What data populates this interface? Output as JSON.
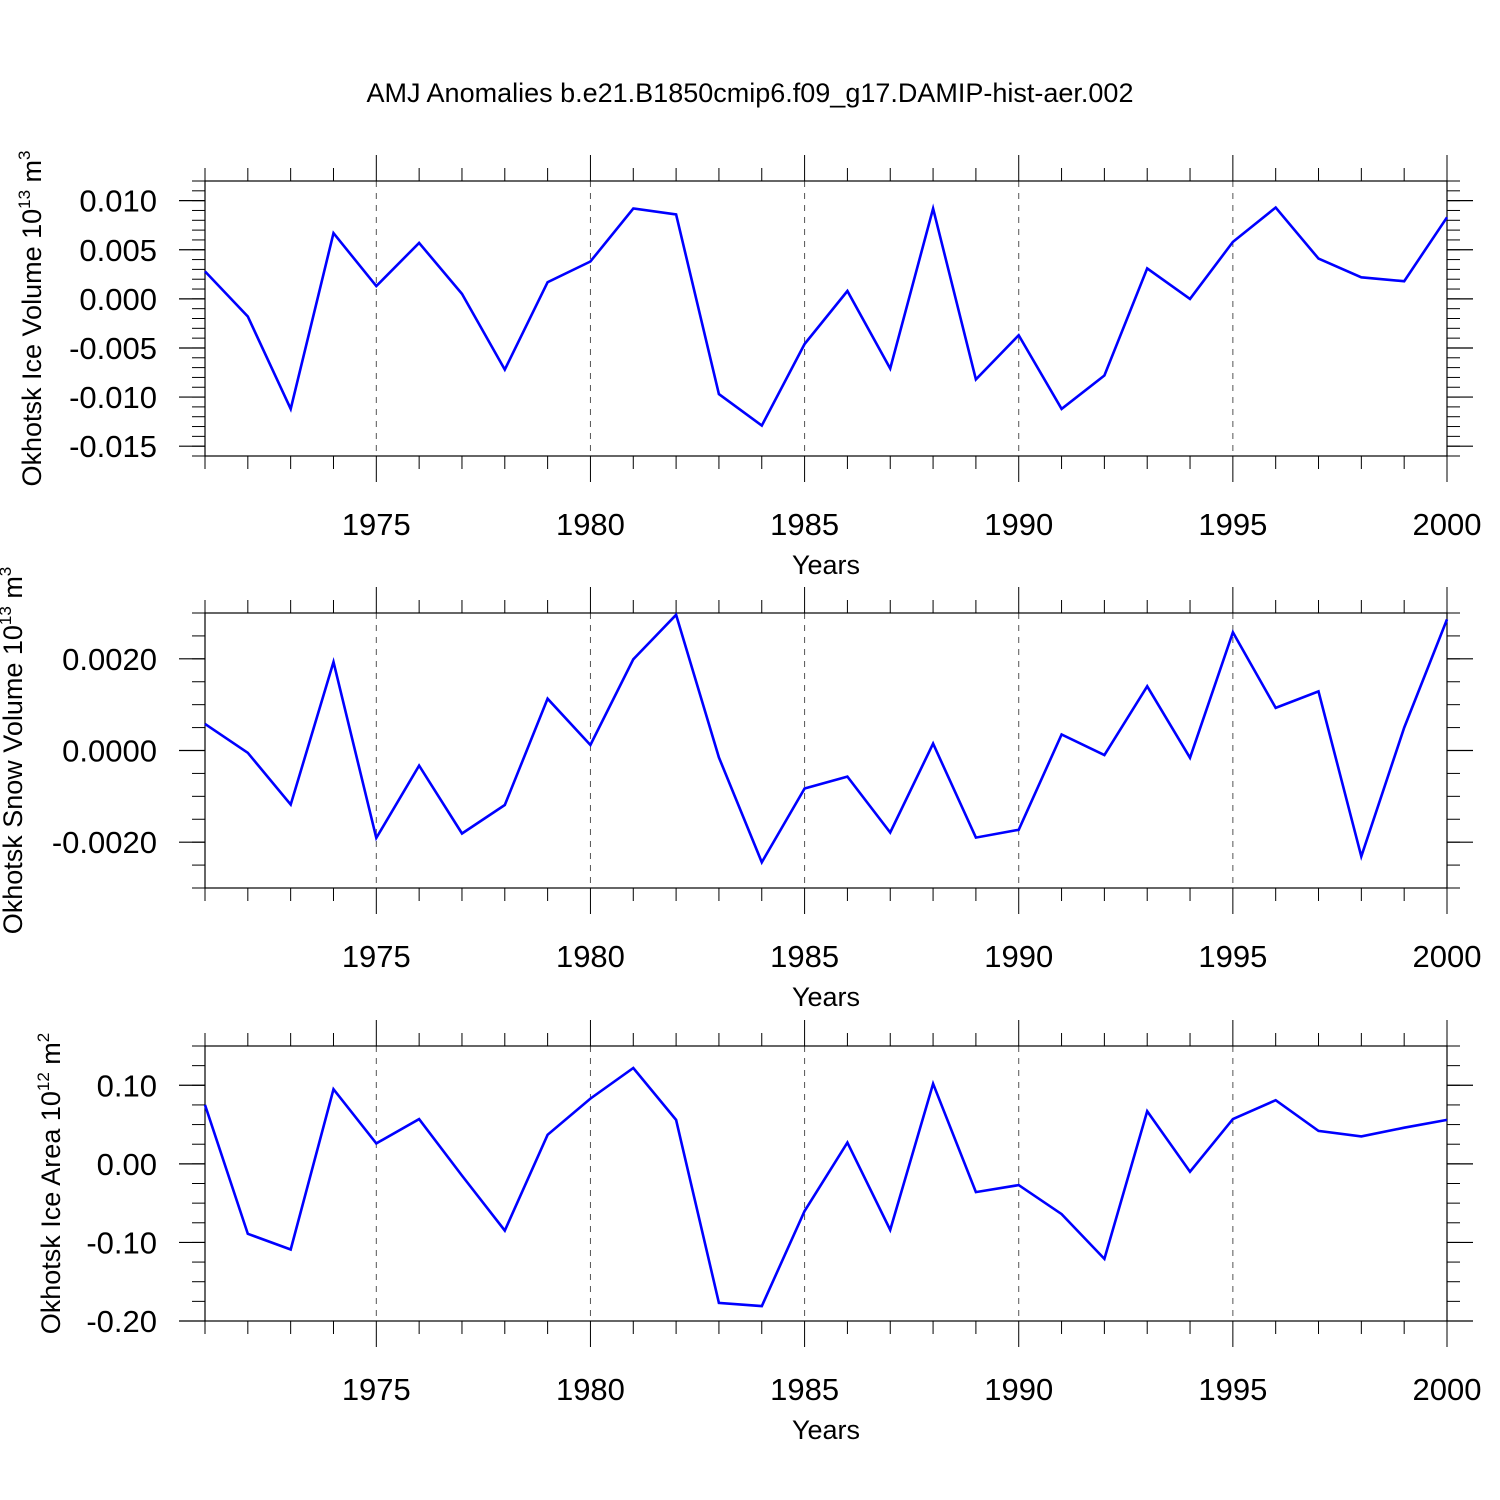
{
  "title": "AMJ Anomalies b.e21.B1850cmip6.f09_g17.DAMIP-hist-aer.002",
  "line_color": "#0000ff",
  "chart_data": [
    {
      "type": "line",
      "name": "ice-volume",
      "ylabel": "Okhotsk Ice Volume 10",
      "ylabel_exp": "13",
      "ylabel_unit": "m",
      "ylabel_unit_exp": "3",
      "xlabel": "Years",
      "xlim": [
        1971,
        2000
      ],
      "ylim": [
        -0.016,
        0.012
      ],
      "yticks": [
        0.01,
        0.005,
        0.0,
        -0.005,
        -0.01,
        -0.015
      ],
      "ytick_labels": [
        "0.010",
        "0.005",
        "0.000",
        "-0.005",
        "-0.010",
        "-0.015"
      ],
      "yminor_step": 0.001,
      "xticks": [
        1975,
        1980,
        1985,
        1990,
        1995,
        2000
      ],
      "xtick_labels": [
        "1975",
        "1980",
        "1985",
        "1990",
        "1995",
        "2000"
      ],
      "x": [
        1971,
        1972,
        1973,
        1974,
        1975,
        1976,
        1977,
        1978,
        1979,
        1980,
        1981,
        1982,
        1983,
        1984,
        1985,
        1986,
        1987,
        1988,
        1989,
        1990,
        1991,
        1992,
        1993,
        1994,
        1995,
        1996,
        1997,
        1998,
        1999,
        2000
      ],
      "values": [
        0.0028,
        -0.0018,
        -0.0112,
        0.0067,
        0.0013,
        0.0057,
        0.0005,
        -0.0072,
        0.0017,
        0.0038,
        0.0092,
        0.0086,
        -0.0097,
        -0.0129,
        -0.0046,
        0.0008,
        -0.0071,
        0.0092,
        -0.0082,
        -0.0037,
        -0.0112,
        -0.0078,
        0.0031,
        0.0,
        0.0058,
        0.0093,
        0.0041,
        0.0022,
        0.0018,
        0.0083
      ]
    },
    {
      "type": "line",
      "name": "snow-volume",
      "ylabel": "Okhotsk Snow Volume 10",
      "ylabel_exp": "13",
      "ylabel_unit": "m",
      "ylabel_unit_exp": "3",
      "xlabel": "Years",
      "xlim": [
        1971,
        2000
      ],
      "ylim": [
        -0.003,
        0.003
      ],
      "yticks": [
        0.002,
        0.0,
        -0.002
      ],
      "ytick_labels": [
        "0.0020",
        "0.0000",
        "-0.0020"
      ],
      "yminor_step": 0.0005,
      "xticks": [
        1975,
        1980,
        1985,
        1990,
        1995,
        2000
      ],
      "xtick_labels": [
        "1975",
        "1980",
        "1985",
        "1990",
        "1995",
        "2000"
      ],
      "x": [
        1971,
        1972,
        1973,
        1974,
        1975,
        1976,
        1977,
        1978,
        1979,
        1980,
        1981,
        1982,
        1983,
        1984,
        1985,
        1986,
        1987,
        1988,
        1989,
        1990,
        1991,
        1992,
        1993,
        1994,
        1995,
        1996,
        1997,
        1998,
        1999,
        2000
      ],
      "values": [
        0.00058,
        -5e-05,
        -0.00118,
        0.00193,
        -0.00191,
        -0.00033,
        -0.00181,
        -0.00119,
        0.00113,
        0.00012,
        0.00199,
        0.00296,
        -0.00015,
        -0.00244,
        -0.00083,
        -0.00057,
        -0.00179,
        0.00015,
        -0.0019,
        -0.00173,
        0.00035,
        -0.0001,
        0.0014,
        -0.00016,
        0.00258,
        0.00093,
        0.00129,
        -0.00231,
        0.0005,
        0.00286
      ]
    },
    {
      "type": "line",
      "name": "ice-area",
      "ylabel": "Okhotsk Ice Area 10",
      "ylabel_exp": "12",
      "ylabel_unit": "m",
      "ylabel_unit_exp": "2",
      "xlabel": "Years",
      "xlim": [
        1971,
        2000
      ],
      "ylim": [
        -0.2,
        0.15
      ],
      "yticks": [
        0.1,
        0.0,
        -0.1,
        -0.2
      ],
      "ytick_labels": [
        "0.10",
        "0.00",
        "-0.10",
        "-0.20"
      ],
      "yminor_step": 0.025,
      "xticks": [
        1975,
        1980,
        1985,
        1990,
        1995,
        2000
      ],
      "xtick_labels": [
        "1975",
        "1980",
        "1985",
        "1990",
        "1995",
        "2000"
      ],
      "x": [
        1971,
        1972,
        1973,
        1974,
        1975,
        1976,
        1977,
        1978,
        1979,
        1980,
        1981,
        1982,
        1983,
        1984,
        1985,
        1986,
        1987,
        1988,
        1989,
        1990,
        1991,
        1992,
        1993,
        1994,
        1995,
        1996,
        1997,
        1998,
        1999,
        2000
      ],
      "values": [
        0.075,
        -0.089,
        -0.109,
        0.095,
        0.026,
        0.057,
        -0.015,
        -0.085,
        0.037,
        0.083,
        0.122,
        0.056,
        -0.177,
        -0.181,
        -0.06,
        0.027,
        -0.084,
        0.102,
        -0.036,
        -0.027,
        -0.064,
        -0.121,
        0.067,
        -0.01,
        0.057,
        0.081,
        0.042,
        0.035,
        0.046,
        0.056
      ]
    }
  ]
}
